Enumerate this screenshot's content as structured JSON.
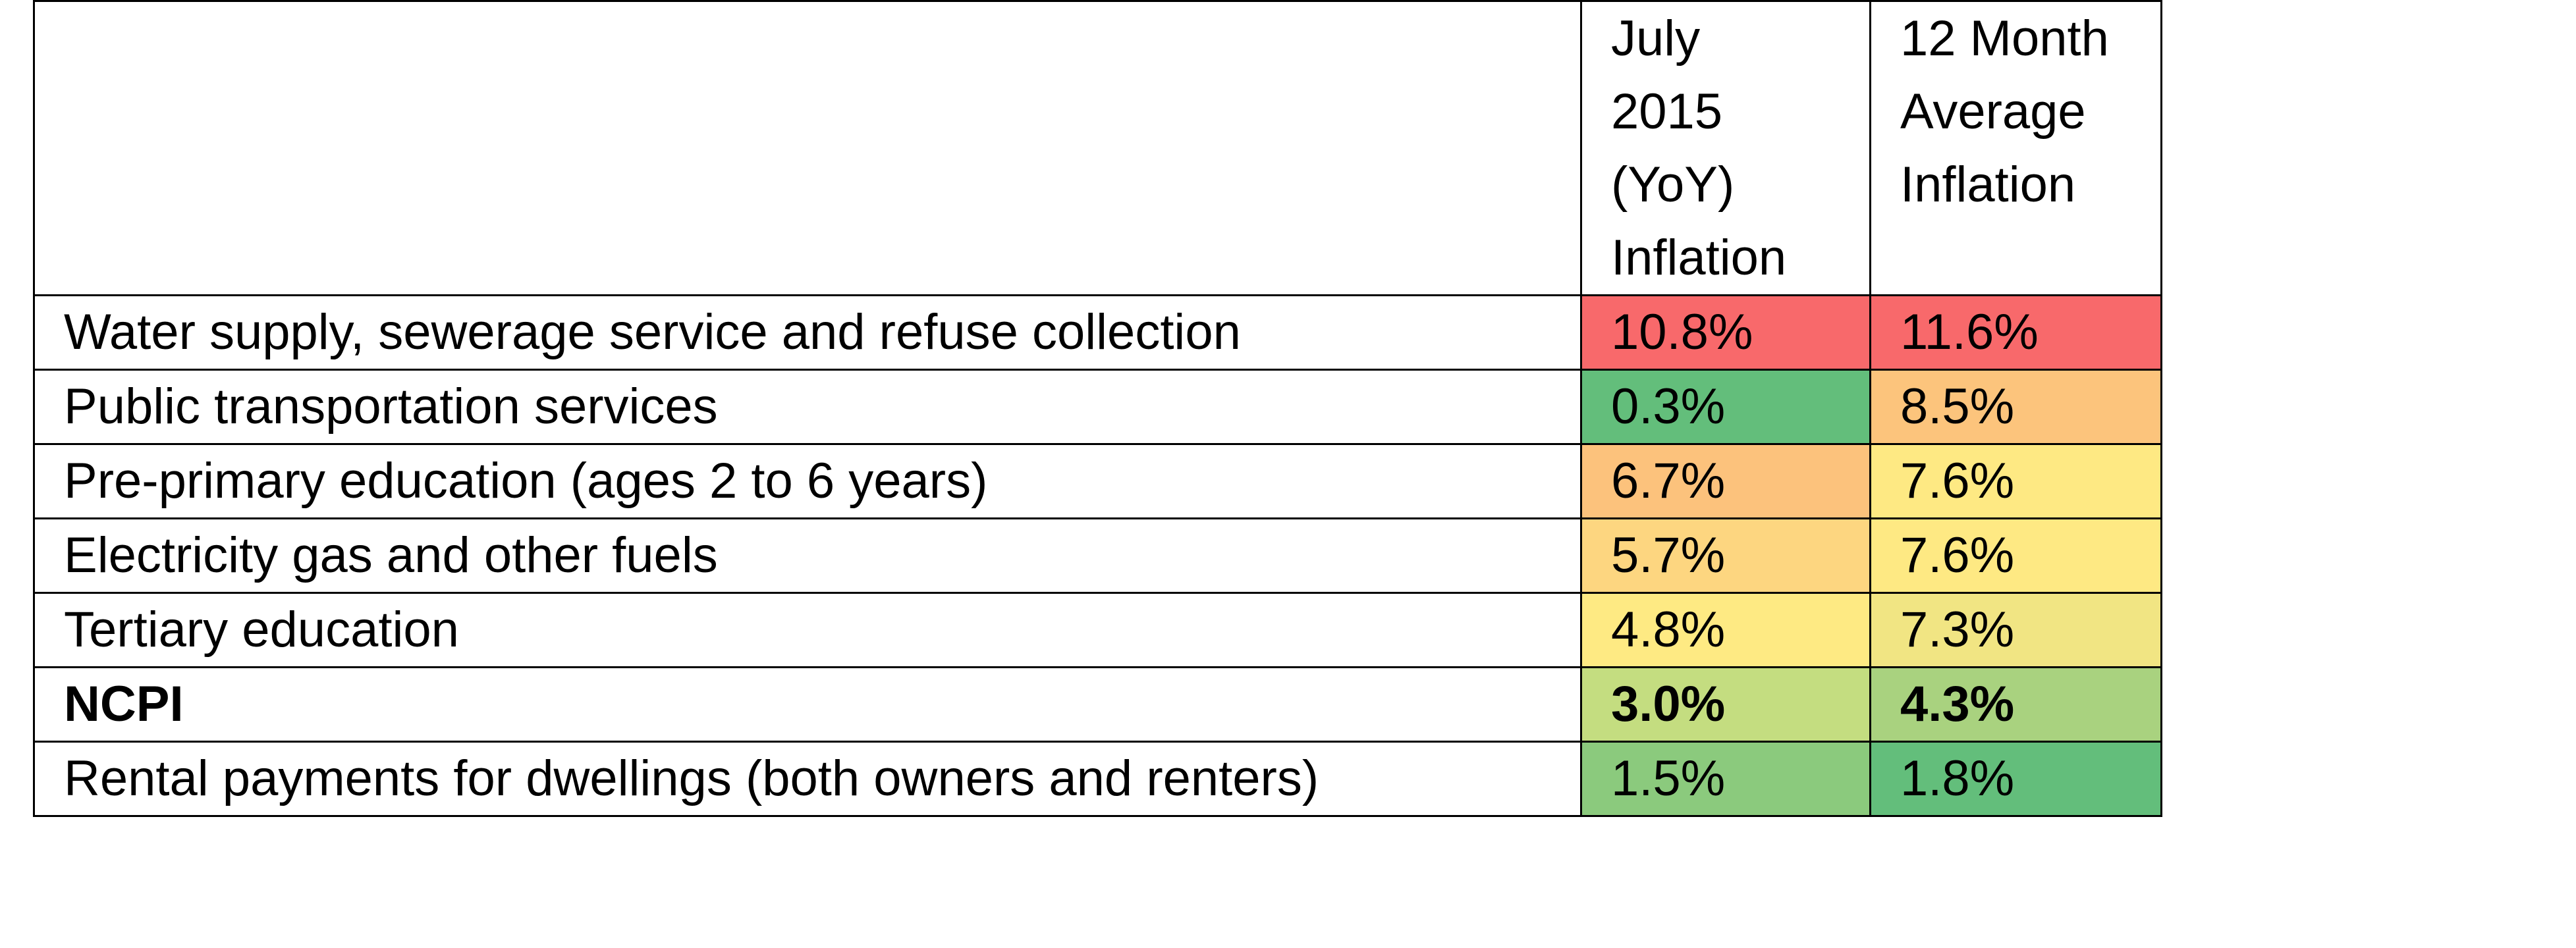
{
  "table": {
    "columns": [
      {
        "lines": [
          "July",
          "2015",
          "(YoY)",
          "Inflation"
        ]
      },
      {
        "lines": [
          "12 Month",
          "Average",
          "Inflation"
        ]
      }
    ],
    "rows": [
      {
        "label": "Water supply, sewerage service and refuse collection",
        "cells": [
          "10.8%",
          "11.6%"
        ],
        "colors": [
          "#f8696b",
          "#f8696b"
        ],
        "bold": false
      },
      {
        "label": "Public transportation services",
        "cells": [
          "0.3%",
          "8.5%"
        ],
        "colors": [
          "#63be7b",
          "#fcc47c"
        ],
        "bold": false
      },
      {
        "label": "Pre-primary education (ages 2 to 6 years)",
        "cells": [
          "6.7%",
          "7.6%"
        ],
        "colors": [
          "#fcc27c",
          "#fee983"
        ],
        "bold": false
      },
      {
        "label": "Electricity gas and other fuels",
        "cells": [
          "5.7%",
          "7.6%"
        ],
        "colors": [
          "#fdd680",
          "#fee983"
        ],
        "bold": false
      },
      {
        "label": "Tertiary education",
        "cells": [
          "4.8%",
          "7.3%"
        ],
        "colors": [
          "#feea83",
          "#f1e583"
        ],
        "bold": false
      },
      {
        "label": "NCPI",
        "cells": [
          "3.0%",
          "4.3%"
        ],
        "colors": [
          "#c4dd80",
          "#a9d27f"
        ],
        "bold": true
      },
      {
        "label": "Rental payments for dwellings (both owners and renters)",
        "cells": [
          "1.5%",
          "1.8%"
        ],
        "colors": [
          "#8bca7d",
          "#63be7b"
        ],
        "bold": false
      }
    ]
  }
}
